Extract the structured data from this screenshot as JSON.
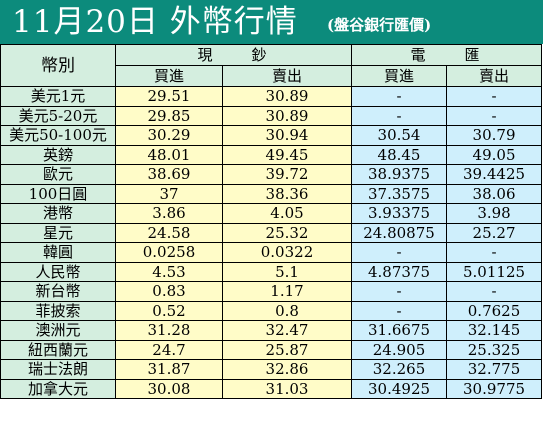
{
  "header": {
    "title": "11月20日 外幣行情",
    "source": "(盤谷銀行匯價)"
  },
  "table": {
    "currency_header": "幣別",
    "groups": [
      "現　　鈔",
      "電　　匯"
    ],
    "sub_headers": [
      "買進",
      "賣出",
      "買進",
      "賣出"
    ],
    "rows": [
      [
        "美元1元",
        "29.51",
        "30.89",
        "-",
        "-"
      ],
      [
        "美元5-20元",
        "29.85",
        "30.89",
        "-",
        "-"
      ],
      [
        "美元50-100元",
        "30.29",
        "30.94",
        "30.54",
        "30.79"
      ],
      [
        "英鎊",
        "48.01",
        "49.45",
        "48.45",
        "49.05"
      ],
      [
        "歐元",
        "38.69",
        "39.72",
        "38.9375",
        "39.4425"
      ],
      [
        "100日圓",
        "37",
        "38.36",
        "37.3575",
        "38.06"
      ],
      [
        "港幣",
        "3.86",
        "4.05",
        "3.93375",
        "3.98"
      ],
      [
        "星元",
        "24.58",
        "25.32",
        "24.80875",
        "25.27"
      ],
      [
        "韓圓",
        "0.0258",
        "0.0322",
        "-",
        "-"
      ],
      [
        "人民幣",
        "4.53",
        "5.1",
        "4.87375",
        "5.01125"
      ],
      [
        "新台幣",
        "0.83",
        "1.17",
        "-",
        "-"
      ],
      [
        "菲披索",
        "0.52",
        "0.8",
        "-",
        "0.7625"
      ],
      [
        "澳洲元",
        "31.28",
        "32.47",
        "31.6675",
        "32.145"
      ],
      [
        "紐西蘭元",
        "24.7",
        "25.87",
        "24.905",
        "25.325"
      ],
      [
        "瑞士法朗",
        "31.87",
        "32.86",
        "32.265",
        "32.775"
      ],
      [
        "加拿大元",
        "30.08",
        "31.03",
        "30.4925",
        "30.9775"
      ]
    ]
  },
  "colors": {
    "title_bg": "#0c8b7c",
    "header_bg": "#d4eedf",
    "cash_bg": "#fffcc8",
    "wire_bg": "#cfeffc"
  }
}
